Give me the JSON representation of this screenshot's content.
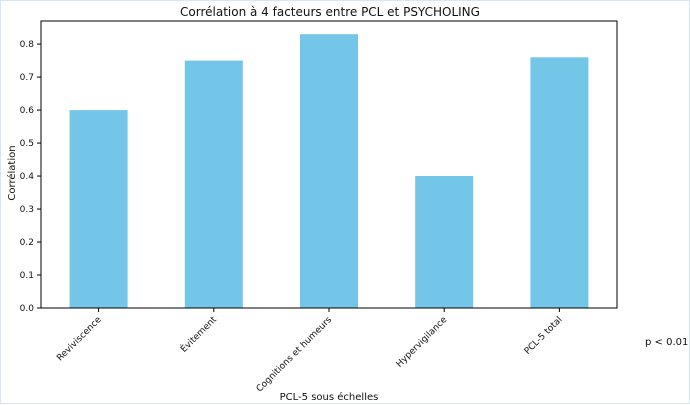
{
  "chart_data": {
    "type": "bar",
    "title": "Corrélation à 4 facteurs entre PCL et PSYCHOLING",
    "xlabel": "PCL-5 sous échelles",
    "ylabel": "Corrélation",
    "categories": [
      "Reviviscence",
      "Évitement",
      "Cognitions et humeurs",
      "Hypervigilance",
      "PCL-5 total"
    ],
    "values": [
      0.6,
      0.75,
      0.83,
      0.4,
      0.76
    ],
    "ylim": [
      0,
      0.87
    ],
    "yticks": [
      "0.0",
      "0.1",
      "0.2",
      "0.3",
      "0.4",
      "0.5",
      "0.6",
      "0.7",
      "0.8"
    ],
    "bar_color": "#73c6e8",
    "grid": false,
    "annotation": "p < 0.01"
  }
}
